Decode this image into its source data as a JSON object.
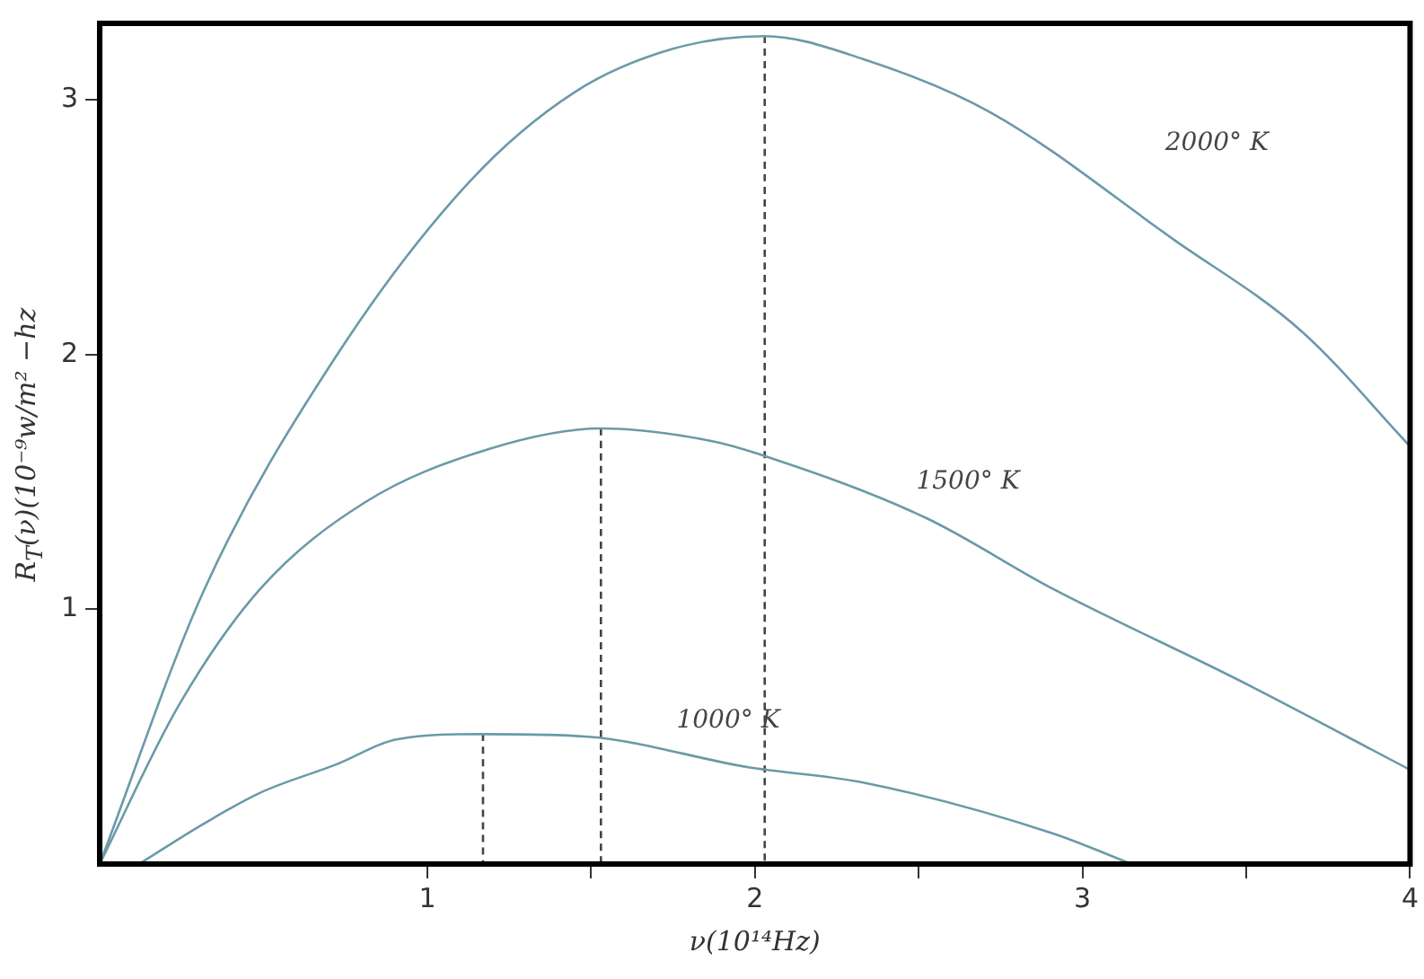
{
  "chart_data": {
    "type": "line",
    "xlabel": "ν(10¹⁴Hz)",
    "ylabel": "R$_{T}$(ν)(10⁻⁹w/m² −hz",
    "xlim": [
      0,
      4
    ],
    "ylim": [
      0,
      3.3
    ],
    "xticks": [
      1,
      {
        "value": 1.5,
        "label": null
      },
      2,
      {
        "value": 2.5,
        "label": null
      },
      3,
      {
        "value": 3.5,
        "label": null
      },
      4
    ],
    "yticks": [
      1,
      2,
      3
    ],
    "grid": false,
    "legend": false,
    "marker": "none",
    "line_style": "solid",
    "series": [
      {
        "name": "2000° K",
        "color": "#6a9aa8",
        "x": [
          0,
          0.32,
          0.72,
          1.13,
          1.45,
          1.75,
          2.03,
          2.33,
          2.72,
          3.28,
          3.67,
          4.0
        ],
        "values": [
          0,
          1.08,
          1.99,
          2.68,
          3.03,
          3.2,
          3.25,
          3.16,
          2.95,
          2.45,
          2.09,
          1.64
        ]
      },
      {
        "name": "1500° K",
        "color": "#6a9aa8",
        "x": [
          0,
          0.24,
          0.49,
          0.81,
          1.19,
          1.53,
          1.87,
          2.01,
          2.52,
          2.91,
          3.48,
          4.0
        ],
        "values": [
          0,
          0.62,
          1.08,
          1.42,
          1.63,
          1.71,
          1.66,
          1.61,
          1.36,
          1.08,
          0.72,
          0.37
        ]
      },
      {
        "name": "1000° K",
        "color": "#6a9aa8",
        "x": [
          0.12,
          0.32,
          0.49,
          0.72,
          0.91,
          1.17,
          1.49,
          1.98,
          2.33,
          2.91,
          3.15
        ],
        "values": [
          0,
          0.16,
          0.28,
          0.39,
          0.49,
          0.51,
          0.5,
          0.38,
          0.32,
          0.12,
          0
        ]
      },
      {
        "color": "#444444",
        "line_style": "dashed",
        "x": [
          1.17,
          1.17
        ],
        "values": [
          0.51,
          0
        ]
      },
      {
        "color": "#444444",
        "line_style": "dashed",
        "x": [
          1.53,
          1.53
        ],
        "values": [
          1.71,
          0
        ]
      },
      {
        "color": "#444444",
        "line_style": "dashed",
        "x": [
          2.03,
          2.03
        ],
        "values": [
          3.25,
          0
        ]
      }
    ]
  }
}
